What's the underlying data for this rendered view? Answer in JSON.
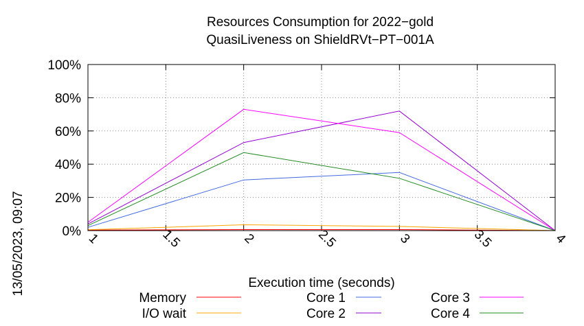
{
  "chart_data": {
    "type": "line",
    "title": [
      "Resources Consumption for 2022−gold",
      "QuasiLiveness on ShieldRVt−PT−001A"
    ],
    "xlabel": "Execution time (seconds)",
    "ylabel": "",
    "timestamp": "13/05/2023, 09:07",
    "xlim": [
      1,
      4
    ],
    "ylim": [
      0,
      100
    ],
    "x_ticks": [
      "1",
      "1.5",
      "2",
      "2.5",
      "3",
      "3.5",
      "4"
    ],
    "y_ticks": [
      "0%",
      "20%",
      "40%",
      "60%",
      "80%",
      "100%"
    ],
    "grid": true,
    "legend_position": "bottom",
    "x": [
      1,
      2,
      3,
      4
    ],
    "series": [
      {
        "name": "Memory",
        "color": "#ff0000",
        "values": [
          0.3,
          0.6,
          0.6,
          0
        ]
      },
      {
        "name": "I/O wait",
        "color": "#ffa500",
        "values": [
          0.5,
          3.5,
          2.5,
          0
        ]
      },
      {
        "name": "Core 1",
        "color": "#4169e1",
        "values": [
          2,
          30.5,
          35,
          0
        ]
      },
      {
        "name": "Core 2",
        "color": "#9400d3",
        "values": [
          4,
          53,
          72,
          0
        ]
      },
      {
        "name": "Core 3",
        "color": "#ff00ff",
        "values": [
          5,
          73,
          59,
          0
        ]
      },
      {
        "name": "Core 4",
        "color": "#228b22",
        "values": [
          3,
          47,
          31.5,
          0
        ]
      }
    ]
  }
}
